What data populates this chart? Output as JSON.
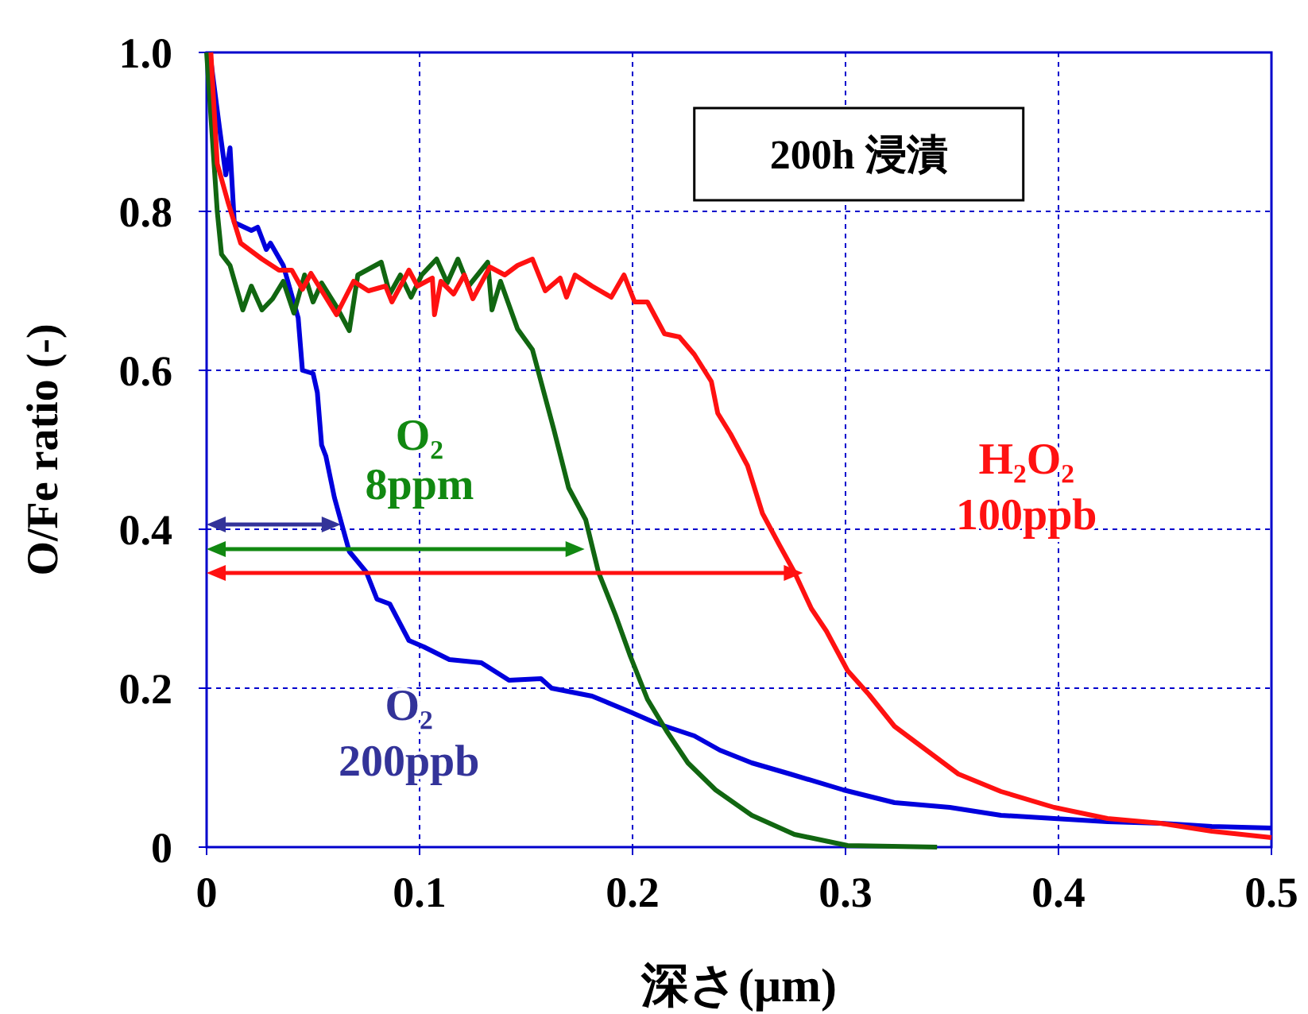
{
  "chart_data": {
    "type": "line",
    "xlabel": "深さ(μm)",
    "ylabel": "O/Fe ratio (-)",
    "annotations": [
      "200h 浸漬"
    ],
    "xlim": [
      0,
      0.5
    ],
    "ylim": [
      0,
      1
    ],
    "xticks": [
      0,
      0.1,
      0.2,
      0.3,
      0.4,
      0.5
    ],
    "yticks": [
      0,
      0.2,
      0.4,
      0.6,
      0.8,
      {
        "value": 1,
        "label": "1.0"
      }
    ],
    "grid": true,
    "line_style": "solid",
    "marker": "none",
    "series": [
      {
        "name": "O₂ 200ppb",
        "color": "#0000dd",
        "x": [
          0.0015,
          0.006,
          0.009,
          0.011,
          0.013,
          0.021,
          0.024,
          0.028,
          0.03,
          0.036,
          0.043,
          0.045,
          0.05,
          0.052,
          0.054,
          0.056,
          0.06,
          0.067,
          0.075,
          0.08,
          0.086,
          0.095,
          0.102,
          0.114,
          0.129,
          0.142,
          0.157,
          0.162,
          0.181,
          0.199,
          0.211,
          0.229,
          0.241,
          0.256,
          0.274,
          0.299,
          0.323,
          0.349,
          0.373,
          0.398,
          0.423,
          0.448,
          0.472,
          0.5
        ],
        "values": [
          1.0,
          0.906,
          0.846,
          0.88,
          0.786,
          0.776,
          0.78,
          0.752,
          0.76,
          0.732,
          0.666,
          0.6,
          0.596,
          0.572,
          0.506,
          0.492,
          0.44,
          0.372,
          0.346,
          0.312,
          0.306,
          0.26,
          0.252,
          0.236,
          0.232,
          0.21,
          0.212,
          0.2,
          0.19,
          0.17,
          0.156,
          0.14,
          0.122,
          0.106,
          0.092,
          0.072,
          0.056,
          0.05,
          0.04,
          0.036,
          0.032,
          0.03,
          0.026,
          0.024
        ]
      },
      {
        "name": "O₂ 8ppm",
        "color": "#116611",
        "x": [
          0,
          0.005,
          0.007,
          0.011,
          0.017,
          0.021,
          0.026,
          0.031,
          0.036,
          0.041,
          0.046,
          0.05,
          0.054,
          0.061,
          0.067,
          0.071,
          0.082,
          0.086,
          0.091,
          0.096,
          0.101,
          0.108,
          0.113,
          0.118,
          0.123,
          0.132,
          0.134,
          0.138,
          0.146,
          0.153,
          0.163,
          0.17,
          0.178,
          0.184,
          0.192,
          0.199,
          0.207,
          0.216,
          0.226,
          0.239,
          0.256,
          0.276,
          0.301,
          0.343
        ],
        "values": [
          1.0,
          0.8,
          0.746,
          0.732,
          0.676,
          0.706,
          0.676,
          0.69,
          0.712,
          0.672,
          0.72,
          0.686,
          0.71,
          0.68,
          0.65,
          0.72,
          0.736,
          0.696,
          0.72,
          0.692,
          0.72,
          0.74,
          0.71,
          0.74,
          0.706,
          0.736,
          0.676,
          0.712,
          0.652,
          0.626,
          0.526,
          0.452,
          0.412,
          0.346,
          0.292,
          0.24,
          0.186,
          0.146,
          0.106,
          0.072,
          0.04,
          0.016,
          0.002,
          0
        ]
      },
      {
        "name": "H₂O₂ 100ppb",
        "color": "#ff1111",
        "x": [
          0.002,
          0.005,
          0.01,
          0.016,
          0.021,
          0.026,
          0.034,
          0.04,
          0.045,
          0.049,
          0.061,
          0.069,
          0.076,
          0.084,
          0.087,
          0.095,
          0.099,
          0.106,
          0.107,
          0.11,
          0.116,
          0.121,
          0.125,
          0.133,
          0.14,
          0.146,
          0.153,
          0.159,
          0.166,
          0.169,
          0.173,
          0.181,
          0.19,
          0.196,
          0.201,
          0.207,
          0.215,
          0.222,
          0.229,
          0.237,
          0.24,
          0.246,
          0.254,
          0.261,
          0.269,
          0.276,
          0.284,
          0.291,
          0.301,
          0.311,
          0.323,
          0.336,
          0.353,
          0.373,
          0.398,
          0.423,
          0.448,
          0.472,
          0.5
        ],
        "values": [
          1.0,
          0.86,
          0.812,
          0.76,
          0.75,
          0.74,
          0.726,
          0.726,
          0.702,
          0.722,
          0.67,
          0.712,
          0.7,
          0.706,
          0.686,
          0.726,
          0.706,
          0.716,
          0.67,
          0.712,
          0.696,
          0.72,
          0.69,
          0.73,
          0.72,
          0.732,
          0.74,
          0.7,
          0.716,
          0.692,
          0.72,
          0.706,
          0.692,
          0.72,
          0.686,
          0.686,
          0.646,
          0.642,
          0.62,
          0.586,
          0.546,
          0.52,
          0.48,
          0.42,
          0.38,
          0.346,
          0.3,
          0.272,
          0.222,
          0.192,
          0.152,
          0.126,
          0.092,
          0.07,
          0.05,
          0.036,
          0.03,
          0.02,
          0.012
        ]
      }
    ]
  }
}
